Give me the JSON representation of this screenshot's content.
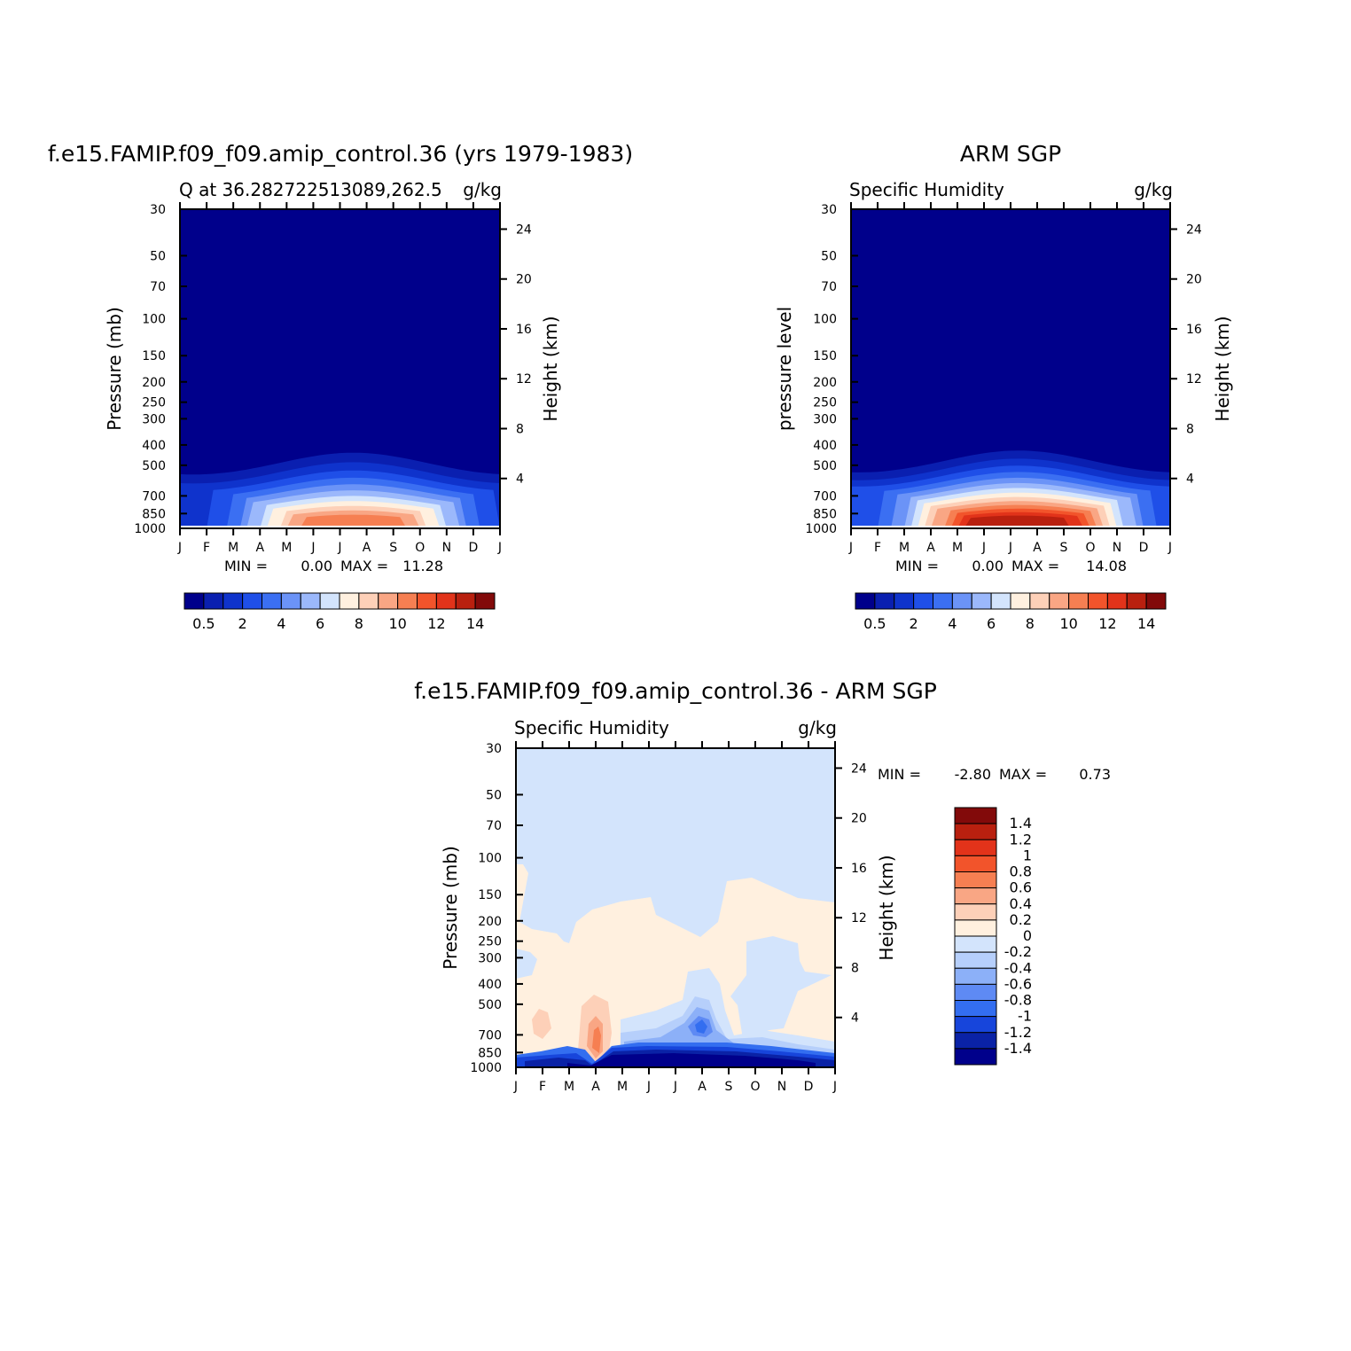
{
  "chart_data": [
    {
      "type": "heatmap",
      "title": "f.e15.FAMIP.f09_f09.amip_control.36 (yrs 1979-1983)",
      "left_label": "Q at 36.282722513089,262.5",
      "right_label": "g/kg",
      "ylabel": "Pressure (mb)",
      "ylabel_right": "Height (km)",
      "x_ticks": [
        "J",
        "F",
        "M",
        "A",
        "M",
        "J",
        "J",
        "A",
        "S",
        "O",
        "N",
        "D",
        "J"
      ],
      "y_ticks": [
        30,
        50,
        70,
        100,
        150,
        200,
        250,
        300,
        400,
        500,
        700,
        850,
        1000
      ],
      "y_right_ticks": [
        24,
        20,
        16,
        12,
        8,
        4
      ],
      "stats": {
        "min_label": "MIN =",
        "min": "0.00",
        "max_label": "MAX =",
        "max": "11.28"
      },
      "colorbar_labels": [
        "0.5",
        "2",
        "4",
        "6",
        "8",
        "10",
        "12",
        "14"
      ],
      "peak": 11.28,
      "peak_month": 6.5
    },
    {
      "type": "heatmap",
      "title": "ARM SGP",
      "left_label": "Specific Humidity",
      "right_label": "g/kg",
      "ylabel": "pressure level",
      "ylabel_right": "Height (km)",
      "x_ticks": [
        "J",
        "F",
        "M",
        "A",
        "M",
        "J",
        "J",
        "A",
        "S",
        "O",
        "N",
        "D",
        "J"
      ],
      "y_ticks": [
        30,
        50,
        70,
        100,
        150,
        200,
        250,
        300,
        400,
        500,
        700,
        850,
        1000
      ],
      "y_right_ticks": [
        24,
        20,
        16,
        12,
        8,
        4
      ],
      "stats": {
        "min_label": "MIN =",
        "min": "0.00",
        "max_label": "MAX =",
        "max": "14.08"
      },
      "colorbar_labels": [
        "0.5",
        "2",
        "4",
        "6",
        "8",
        "10",
        "12",
        "14"
      ],
      "peak": 14.08,
      "peak_month": 6.3
    },
    {
      "type": "heatmap",
      "title": "f.e15.FAMIP.f09_f09.amip_control.36 - ARM SGP",
      "left_label": "Specific Humidity",
      "right_label": "g/kg",
      "ylabel": "Pressure (mb)",
      "ylabel_right": "Height (km)",
      "x_ticks": [
        "J",
        "F",
        "M",
        "A",
        "M",
        "J",
        "J",
        "A",
        "S",
        "O",
        "N",
        "D",
        "J"
      ],
      "y_ticks": [
        30,
        50,
        70,
        100,
        150,
        200,
        250,
        300,
        400,
        500,
        700,
        850,
        1000
      ],
      "y_right_ticks": [
        24,
        20,
        16,
        12,
        8,
        4
      ],
      "stats": {
        "min_label": "MIN =",
        "min": "-2.80",
        "max_label": "MAX =",
        "max": "0.73"
      },
      "colorbar_labels": [
        "1.4",
        "1.2",
        "1",
        "0.8",
        "0.6",
        "0.4",
        "0.2",
        "0",
        "-0.2",
        "-0.4",
        "-0.6",
        "-0.8",
        "-1",
        "-1.2",
        "-1.4"
      ]
    }
  ],
  "colors": {
    "q_levels": [
      "#00008b",
      "#0a1fb0",
      "#0f33cc",
      "#1f4fe8",
      "#3b6ff2",
      "#6b93f7",
      "#9bb8fb",
      "#d3e4fc",
      "#fff0df",
      "#fdd0b8",
      "#f9a684",
      "#f67f52",
      "#f2542b",
      "#e2331a",
      "#b9200f",
      "#820a0a"
    ],
    "diff_levels": [
      "#820a0a",
      "#b9200f",
      "#e2331a",
      "#f2542b",
      "#f67f52",
      "#f9a684",
      "#fdd0b8",
      "#fff0df",
      "#d3e4fc",
      "#b6cffb",
      "#8cb0f8",
      "#5e8af4",
      "#336ef0",
      "#1745db",
      "#0a22a6",
      "#00008b"
    ]
  }
}
